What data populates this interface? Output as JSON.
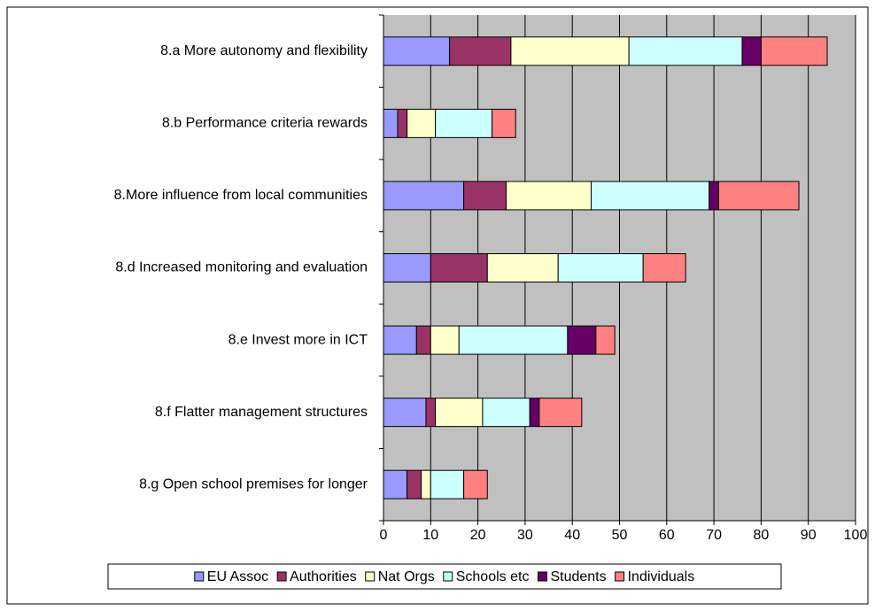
{
  "chart_data": {
    "type": "stacked_barh",
    "categories": [
      "8.a  More autonomy and flexibility",
      "8.b  Performance criteria rewards",
      "8.More influence from local communities",
      "8.d  Increased monitoring and evaluation",
      "8.e Invest more in ICT",
      "8.f  Flatter management structures",
      "8.g Open school premises for longer"
    ],
    "series": [
      {
        "name": "EU Assoc",
        "color": "#9999ff",
        "values": [
          14,
          3,
          17,
          10,
          7,
          9,
          5
        ]
      },
      {
        "name": "Authorities",
        "color": "#993366",
        "values": [
          13,
          2,
          9,
          12,
          3,
          2,
          3
        ]
      },
      {
        "name": "Nat Orgs",
        "color": "#ffffcc",
        "values": [
          25,
          6,
          18,
          15,
          6,
          10,
          2
        ]
      },
      {
        "name": "Schools etc",
        "color": "#ccffff",
        "values": [
          24,
          12,
          25,
          18,
          23,
          10,
          7
        ]
      },
      {
        "name": "Students",
        "color": "#660066",
        "values": [
          4,
          0,
          2,
          0,
          6,
          2,
          0
        ]
      },
      {
        "name": "Individuals",
        "color": "#ff8080",
        "values": [
          14,
          5,
          17,
          9,
          4,
          9,
          5
        ]
      }
    ],
    "xlim": [
      0,
      100
    ],
    "xticks": [
      0,
      10,
      20,
      30,
      40,
      50,
      60,
      70,
      80,
      90,
      100
    ],
    "grid": true,
    "legend": "bottom"
  }
}
